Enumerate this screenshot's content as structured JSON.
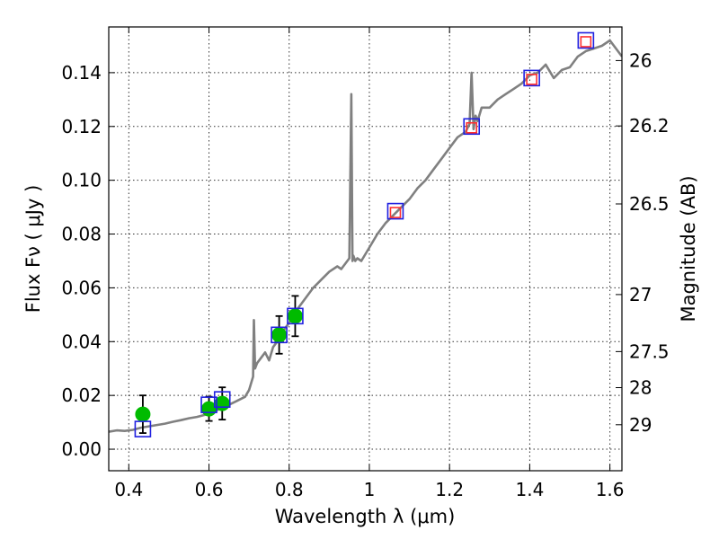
{
  "chart_data": {
    "type": "line",
    "xlabel": "Wavelength  λ (μm)",
    "ylabel": "Flux  Fν  ( μJy )",
    "ylabel_right": "Magnitude (AB)",
    "xlim": [
      0.35,
      1.63
    ],
    "ylim": [
      -0.008,
      0.157
    ],
    "grid": true,
    "x_ticks": [
      0.4,
      0.6,
      0.8,
      1.0,
      1.2,
      1.4,
      1.6
    ],
    "x_tick_labels": [
      "0.4",
      "0.6",
      "0.8",
      "1",
      "1.2",
      "1.4",
      "1.6"
    ],
    "y_ticks": [
      0.0,
      0.02,
      0.04,
      0.06,
      0.08,
      0.1,
      0.12,
      0.14
    ],
    "y_tick_labels": [
      "0.00",
      "0.02",
      "0.04",
      "0.06",
      "0.08",
      "0.10",
      "0.12",
      "0.14"
    ],
    "right_ticks": [
      {
        "label": "26",
        "flux": 0.1445
      },
      {
        "label": "26.2",
        "flux": 0.1202
      },
      {
        "label": "26.5",
        "flux": 0.0912
      },
      {
        "label": "27",
        "flux": 0.0575
      },
      {
        "label": "27.5",
        "flux": 0.0363
      },
      {
        "label": "28",
        "flux": 0.0229
      },
      {
        "label": "29",
        "flux": 0.0091
      }
    ],
    "series": [
      {
        "type": "line",
        "color": "#808080",
        "x": [
          0.35,
          0.37,
          0.39,
          0.41,
          0.43,
          0.45,
          0.47,
          0.49,
          0.51,
          0.53,
          0.55,
          0.57,
          0.59,
          0.61,
          0.63,
          0.65,
          0.67,
          0.69,
          0.7,
          0.71,
          0.712,
          0.715,
          0.72,
          0.73,
          0.74,
          0.75,
          0.76,
          0.77,
          0.78,
          0.79,
          0.8,
          0.82,
          0.84,
          0.86,
          0.88,
          0.9,
          0.92,
          0.93,
          0.94,
          0.95,
          0.955,
          0.958,
          0.96,
          0.965,
          0.97,
          0.98,
          1.0,
          1.02,
          1.04,
          1.06,
          1.08,
          1.1,
          1.12,
          1.14,
          1.16,
          1.18,
          1.2,
          1.22,
          1.24,
          1.25,
          1.255,
          1.26,
          1.265,
          1.27,
          1.28,
          1.3,
          1.32,
          1.34,
          1.36,
          1.38,
          1.4,
          1.42,
          1.44,
          1.46,
          1.48,
          1.5,
          1.52,
          1.54,
          1.56,
          1.58,
          1.6,
          1.61,
          1.62,
          1.63
        ],
        "y": [
          0.0065,
          0.007,
          0.0068,
          0.0072,
          0.008,
          0.0085,
          0.009,
          0.0095,
          0.0102,
          0.0108,
          0.0115,
          0.012,
          0.0128,
          0.0138,
          0.0152,
          0.0165,
          0.018,
          0.0195,
          0.022,
          0.027,
          0.048,
          0.03,
          0.032,
          0.034,
          0.036,
          0.033,
          0.038,
          0.04,
          0.043,
          0.045,
          0.047,
          0.052,
          0.056,
          0.06,
          0.063,
          0.066,
          0.068,
          0.067,
          0.069,
          0.071,
          0.132,
          0.07,
          0.072,
          0.07,
          0.071,
          0.07,
          0.075,
          0.08,
          0.084,
          0.087,
          0.09,
          0.093,
          0.097,
          0.1,
          0.104,
          0.108,
          0.112,
          0.116,
          0.118,
          0.121,
          0.14,
          0.119,
          0.124,
          0.122,
          0.127,
          0.127,
          0.13,
          0.132,
          0.134,
          0.136,
          0.139,
          0.14,
          0.143,
          0.138,
          0.141,
          0.142,
          0.146,
          0.148,
          0.149,
          0.15,
          0.152,
          0.15,
          0.148,
          0.146
        ]
      },
      {
        "type": "scatter",
        "marker": "circle",
        "color": "#00bb00",
        "x": [
          0.435,
          0.6,
          0.633,
          0.775,
          0.815
        ],
        "y": [
          0.013,
          0.015,
          0.017,
          0.0425,
          0.0495
        ],
        "yerr": [
          0.007,
          0.0045,
          0.006,
          0.007,
          0.0075
        ]
      },
      {
        "type": "scatter",
        "marker": "square",
        "color": "#2020e0",
        "x": [
          0.435,
          0.6,
          0.633,
          0.775,
          0.815,
          1.065,
          1.255,
          1.405,
          1.54
        ],
        "y": [
          0.0075,
          0.0165,
          0.0185,
          0.0425,
          0.0495,
          0.0885,
          0.12,
          0.138,
          0.152
        ]
      },
      {
        "type": "scatter",
        "marker": "square-small",
        "color": "#ff3030",
        "x": [
          1.065,
          1.255,
          1.405,
          1.54
        ],
        "y": [
          0.088,
          0.1195,
          0.1375,
          0.1515
        ]
      }
    ]
  }
}
